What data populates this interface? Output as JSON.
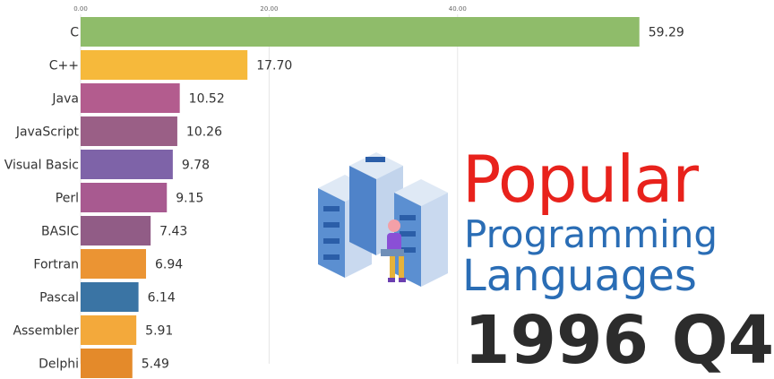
{
  "chart_data": {
    "type": "bar",
    "orientation": "horizontal",
    "categories": [
      "C",
      "C++",
      "Java",
      "JavaScript",
      "Visual Basic",
      "Perl",
      "BASIC",
      "Fortran",
      "Pascal",
      "Assembler",
      "Delphi"
    ],
    "values": [
      59.29,
      17.7,
      10.52,
      10.26,
      9.78,
      9.15,
      7.43,
      6.94,
      6.14,
      5.91,
      5.49
    ],
    "value_labels": [
      "59.29",
      "17.70",
      "10.52",
      "10.26",
      "9.78",
      "9.15",
      "7.43",
      "6.94",
      "6.14",
      "5.91",
      "5.49"
    ],
    "colors": [
      "#8fbc6a",
      "#f6b93b",
      "#b35c8e",
      "#9a5f86",
      "#7e63a8",
      "#a85a90",
      "#915c86",
      "#eb9433",
      "#3a74a4",
      "#f3a93b",
      "#e48a2a"
    ],
    "xticks": [
      0,
      20,
      40
    ],
    "xtick_labels": [
      "0.00",
      "20.00",
      "40.00"
    ],
    "xlim": [
      0,
      60
    ],
    "grid": true
  },
  "titles": {
    "line1": "Popular",
    "line2": "Programming",
    "line3": "Languages"
  },
  "period": "1996 Q4",
  "illustration": "server-racks-with-person-on-laptop"
}
